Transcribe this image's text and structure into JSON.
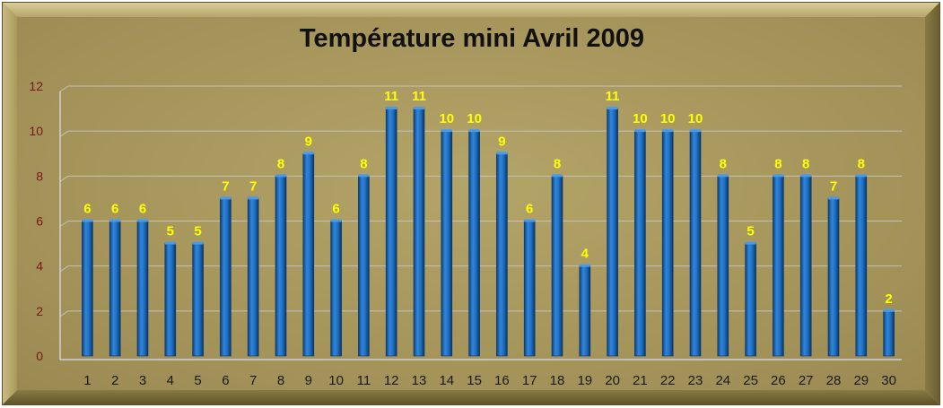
{
  "chart_data": {
    "type": "bar",
    "title": "Température mini Avril 2009",
    "xlabel": "",
    "ylabel": "",
    "categories": [
      "1",
      "2",
      "3",
      "4",
      "5",
      "6",
      "7",
      "8",
      "9",
      "10",
      "11",
      "12",
      "13",
      "14",
      "15",
      "16",
      "17",
      "18",
      "19",
      "20",
      "21",
      "22",
      "23",
      "24",
      "25",
      "26",
      "27",
      "28",
      "29",
      "30"
    ],
    "values": [
      6,
      6,
      6,
      5,
      5,
      7,
      7,
      8,
      9,
      6,
      8,
      11,
      11,
      10,
      10,
      9,
      6,
      8,
      4,
      11,
      10,
      10,
      10,
      8,
      5,
      8,
      8,
      7,
      8,
      2
    ],
    "data_labels": [
      "6",
      "6",
      "6",
      "5",
      "5",
      "7",
      "7",
      "8",
      "9",
      "6",
      "8",
      "11",
      "11",
      "10",
      "10",
      "9",
      "6",
      "8",
      "4",
      "11",
      "10",
      "10",
      "10",
      "8",
      "5",
      "8",
      "8",
      "7",
      "8",
      "2"
    ],
    "ylim": [
      0,
      12
    ],
    "yticks": [
      "0",
      "2",
      "4",
      "6",
      "8",
      "10",
      "12"
    ],
    "grid": true,
    "legend": "none",
    "colors": {
      "bar": "#1f6fc1",
      "data_label": "#ffff00",
      "frame": "#a8965a",
      "y_tick": "#7a1616"
    }
  }
}
